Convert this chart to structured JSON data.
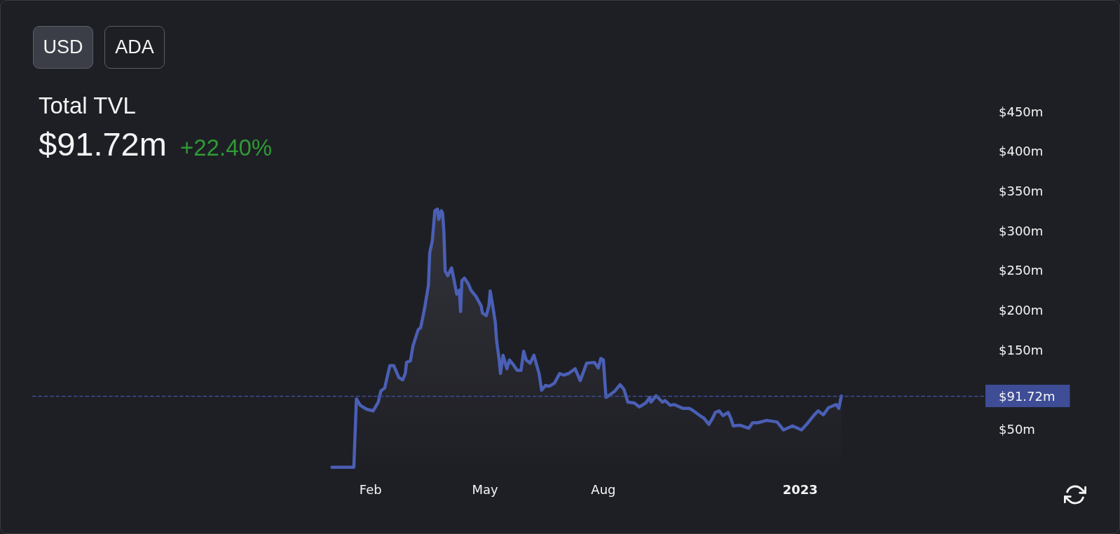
{
  "chart_data": {
    "type": "area",
    "title": "Total TVL",
    "subtitle": "$91.72m",
    "annotations": [
      "+22.40%",
      "USD",
      "ADA"
    ],
    "x": [
      "2022-01-02",
      "2022-01-19",
      "2022-01-21",
      "2022-01-24",
      "2022-01-29",
      "2022-02-03",
      "2022-02-07",
      "2022-02-09",
      "2022-02-12",
      "2022-02-16",
      "2022-02-19",
      "2022-02-23",
      "2022-02-26",
      "2022-02-28",
      "2022-03-01",
      "2022-03-04",
      "2022-03-06",
      "2022-03-10",
      "2022-03-12",
      "2022-03-15",
      "2022-03-18",
      "2022-03-19",
      "2022-03-21",
      "2022-03-23",
      "2022-03-25",
      "2022-03-26",
      "2022-03-28",
      "2022-03-29",
      "2022-03-30",
      "2022-03-31",
      "2022-04-02",
      "2022-04-05",
      "2022-04-07",
      "2022-04-09",
      "2022-04-11",
      "2022-04-12",
      "2022-04-13",
      "2022-04-15",
      "2022-04-18",
      "2022-04-20",
      "2022-04-24",
      "2022-04-28",
      "2022-04-29",
      "2022-05-02",
      "2022-05-04",
      "2022-05-05",
      "2022-05-07",
      "2022-05-09",
      "2022-05-10",
      "2022-05-12",
      "2022-05-13",
      "2022-05-15",
      "2022-05-18",
      "2022-05-20",
      "2022-05-23",
      "2022-05-26",
      "2022-05-29",
      "2022-05-31",
      "2022-06-02",
      "2022-06-05",
      "2022-06-08",
      "2022-06-12",
      "2022-06-14",
      "2022-06-17",
      "2022-06-20",
      "2022-06-24",
      "2022-06-28",
      "2022-07-01",
      "2022-07-05",
      "2022-07-10",
      "2022-07-14",
      "2022-07-19",
      "2022-07-25",
      "2022-07-28",
      "2022-07-30",
      "2022-08-01",
      "2022-08-03",
      "2022-08-05",
      "2022-08-10",
      "2022-08-14",
      "2022-08-17",
      "2022-08-20",
      "2022-08-25",
      "2022-08-29",
      "2022-09-03",
      "2022-09-06",
      "2022-09-07",
      "2022-09-11",
      "2022-09-16",
      "2022-09-18",
      "2022-09-22",
      "2022-09-25",
      "2022-10-02",
      "2022-10-07",
      "2022-10-10",
      "2022-10-15",
      "2022-10-18",
      "2022-10-22",
      "2022-10-25",
      "2022-10-27",
      "2022-10-30",
      "2022-11-02",
      "2022-11-06",
      "2022-11-08",
      "2022-11-10",
      "2022-11-15",
      "2022-11-22",
      "2022-11-25",
      "2022-11-29",
      "2022-12-06",
      "2022-12-14",
      "2022-12-16",
      "2022-12-19",
      "2022-12-26",
      "2023-01-02",
      "2023-01-06",
      "2023-01-12",
      "2023-01-15",
      "2023-01-19",
      "2023-01-23",
      "2023-01-26",
      "2023-01-29",
      "2023-01-31",
      "2023-02-02"
    ],
    "values": [
      2,
      2,
      88,
      80,
      75,
      73,
      84,
      98,
      102,
      130,
      130,
      115,
      112,
      120,
      134,
      136,
      155,
      175,
      178,
      202,
      231,
      272,
      287,
      325,
      327,
      314,
      325,
      322,
      299,
      249,
      243,
      253,
      237,
      220,
      225,
      198,
      237,
      240,
      233,
      225,
      217,
      205,
      196,
      193,
      205,
      224,
      205,
      184,
      161,
      137,
      120,
      143,
      126,
      137,
      131,
      124,
      124,
      148,
      137,
      133,
      143,
      120,
      99,
      105,
      104,
      108,
      120,
      118,
      120,
      126,
      111,
      133,
      134,
      127,
      139,
      137,
      90,
      92,
      98,
      106,
      100,
      84,
      83,
      78,
      83,
      90,
      84,
      92,
      84,
      86,
      80,
      81,
      76,
      76,
      73,
      67,
      64,
      56,
      64,
      71,
      73,
      67,
      71,
      64,
      54,
      55,
      51,
      58,
      58,
      61,
      59,
      55,
      49,
      54,
      49,
      56,
      68,
      73,
      68,
      77,
      79,
      81,
      76,
      91.72
    ],
    "color": "#4a5fb5",
    "xlim": [
      "2021-05-14",
      "2023-05-25"
    ],
    "xticks": [
      {
        "value": "2022-02-01",
        "label": "Feb"
      },
      {
        "value": "2022-05-01",
        "label": "May"
      },
      {
        "value": "2022-08-01",
        "label": "Aug"
      },
      {
        "value": "2023-01-01",
        "label": "2023"
      }
    ],
    "ylim": [
      0,
      450
    ],
    "yticks": [
      {
        "value": 50,
        "label": "$50m"
      },
      {
        "value": 150,
        "label": "$150m"
      },
      {
        "value": 200,
        "label": "$200m"
      },
      {
        "value": 250,
        "label": "$250m"
      },
      {
        "value": 300,
        "label": "$300m"
      },
      {
        "value": 350,
        "label": "$350m"
      },
      {
        "value": 400,
        "label": "$400m"
      },
      {
        "value": 450,
        "label": "$450m"
      }
    ],
    "ref_lines": [
      {
        "axis": "y",
        "value": 91.72,
        "label": "$91.72m",
        "color": "#3e4d96",
        "line_style": "dashed"
      }
    ]
  }
}
